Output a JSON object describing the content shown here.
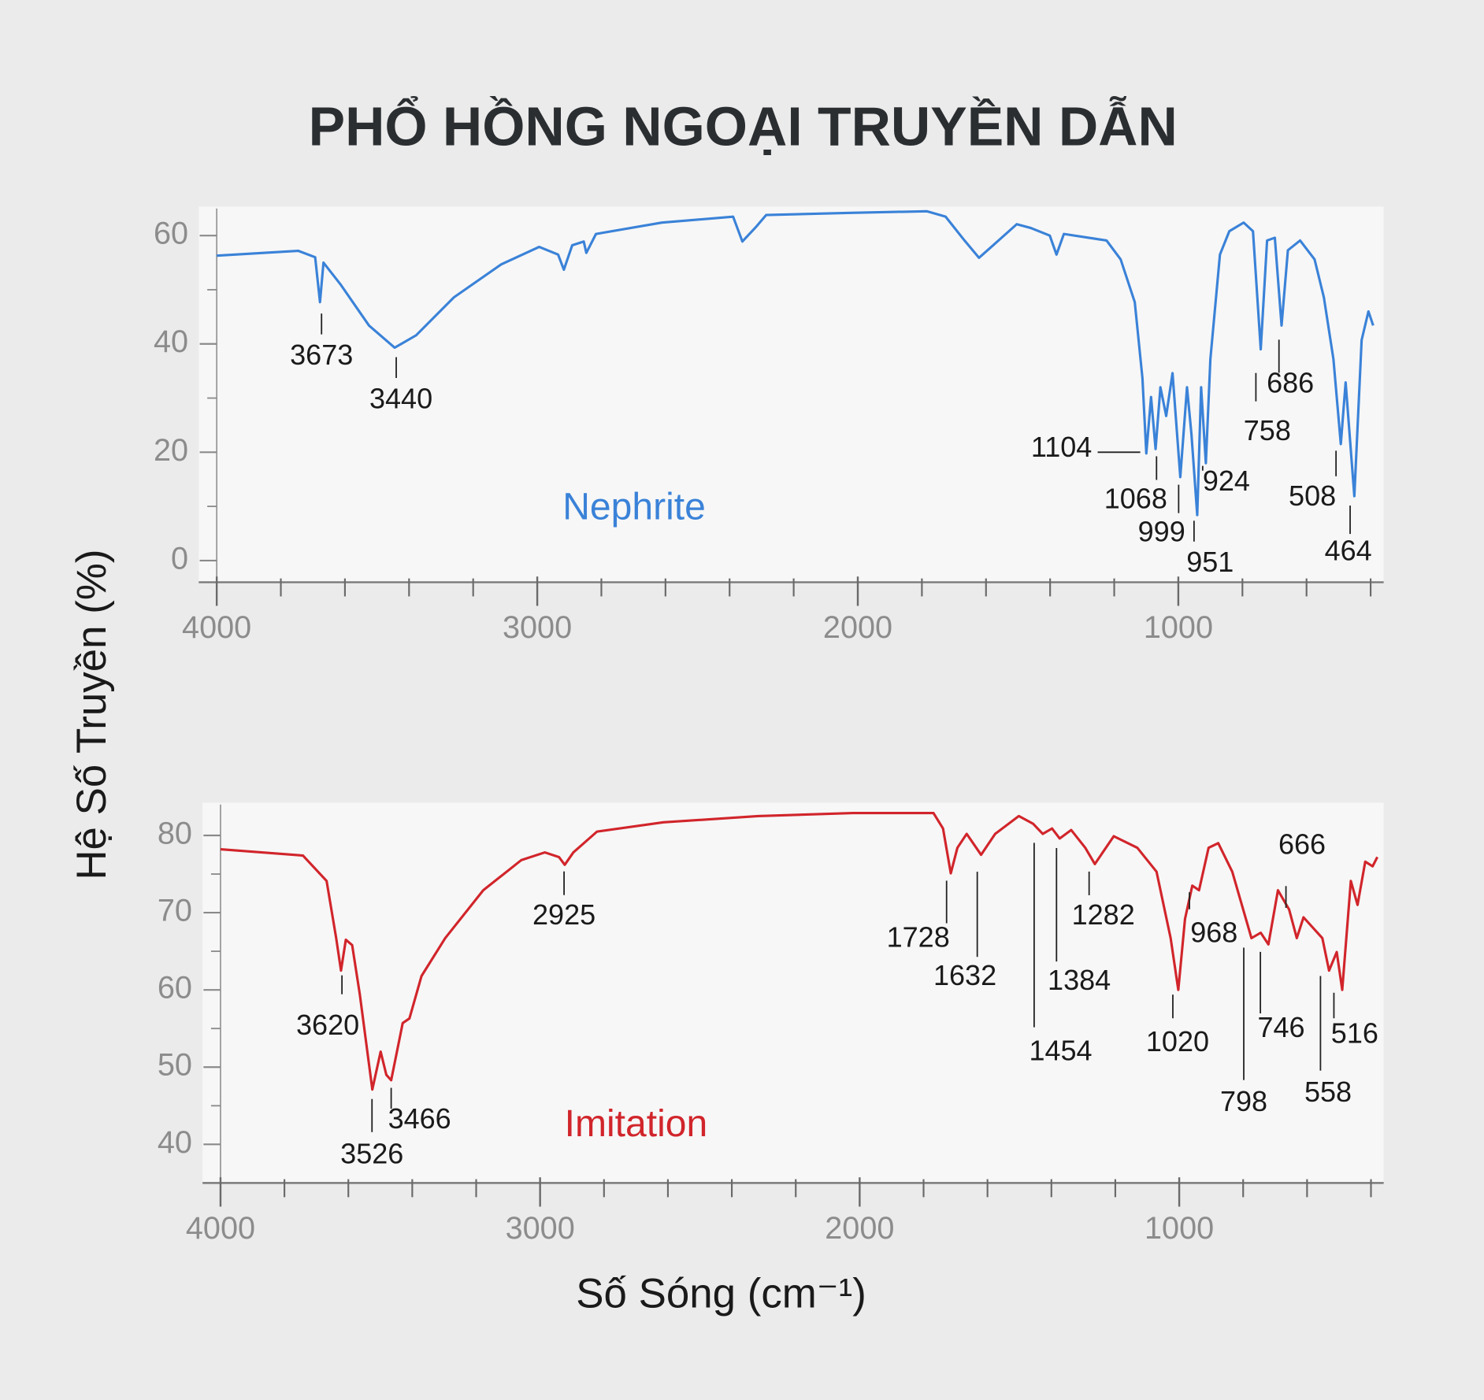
{
  "title": "PHỔ HỒNG NGOẠI TRUYỀN DẪN",
  "ylabel": "Hệ Số Truyền (%)",
  "xlabel": "Số Sóng (cm⁻¹)",
  "chart_data": [
    {
      "type": "line",
      "x": [
        4000,
        3746,
        3693,
        3678,
        3667,
        3614,
        3525,
        3445,
        3378,
        3260,
        3112,
        2994,
        2935,
        2917,
        2891,
        2855,
        2847,
        2817,
        2611,
        2389,
        2360,
        2316,
        2286,
        2021,
        1785,
        1726,
        1667,
        1622,
        1578,
        1504,
        1460,
        1401,
        1380,
        1357,
        1224,
        1180,
        1136,
        1112,
        1100,
        1085,
        1071,
        1056,
        1038,
        1018,
        994,
        973,
        959,
        941,
        929,
        914,
        900,
        870,
        841,
        796,
        767,
        743,
        723,
        699,
        678,
        658,
        620,
        575,
        546,
        516,
        493,
        478,
        451,
        428,
        407,
        392
      ],
      "series": [
        {
          "name": "Nephrite",
          "color": "#3a82d8",
          "values": [
            56.3,
            57.2,
            56,
            47.7,
            55,
            51,
            43.4,
            39.3,
            41.6,
            48.6,
            54.7,
            57.9,
            56.5,
            53.7,
            58.2,
            58.9,
            56.8,
            60.3,
            62.4,
            63.5,
            58.9,
            61.7,
            63.8,
            64.2,
            64.5,
            63.5,
            59.1,
            55.9,
            58.2,
            62.1,
            61.4,
            60,
            56.5,
            60.3,
            59.1,
            55.6,
            47.7,
            33.7,
            19.8,
            30.2,
            20.6,
            32,
            26.7,
            34.6,
            15.4,
            32,
            23.3,
            8.4,
            32,
            18,
            37.2,
            56.5,
            60.8,
            62.4,
            60.8,
            39,
            59.1,
            59.6,
            43.4,
            57.3,
            59.1,
            55.6,
            48.6,
            37.2,
            21.5,
            32.9,
            11.9,
            40.7,
            46,
            43.4
          ]
        }
      ],
      "xlim": [
        4000,
        380
      ],
      "xticks": [
        4000,
        3000,
        2000,
        1000
      ],
      "xminorticks": [
        3800,
        3600,
        3400,
        3200,
        2800,
        2600,
        2400,
        2200,
        1800,
        1600,
        1400,
        1200,
        800,
        600,
        400
      ],
      "ylim": [
        -4,
        65
      ],
      "yticks": [
        0,
        20,
        40,
        60
      ],
      "yminorticks": [
        10,
        30,
        50
      ],
      "annotations": [
        {
          "x": 3673,
          "y": 47.7
        },
        {
          "x": 3440,
          "y": 39.3
        },
        {
          "x": 1104,
          "y": 20
        },
        {
          "x": 1068,
          "y": 21
        },
        {
          "x": 999,
          "y": 15.4
        },
        {
          "x": 951,
          "y": 8.4
        },
        {
          "x": 924,
          "y": 18
        },
        {
          "x": 758,
          "y": 39
        },
        {
          "x": 686,
          "y": 43.4
        },
        {
          "x": 508,
          "y": 21.5
        },
        {
          "x": 464,
          "y": 11.9
        }
      ]
    },
    {
      "type": "line",
      "x": [
        4000,
        3742,
        3668,
        3638,
        3623,
        3608,
        3588,
        3564,
        3525,
        3499,
        3481,
        3466,
        3430,
        3409,
        3371,
        3297,
        3178,
        3059,
        2985,
        2941,
        2923,
        2896,
        2822,
        2614,
        2318,
        2021,
        1769,
        1739,
        1715,
        1694,
        1665,
        1620,
        1576,
        1502,
        1457,
        1427,
        1398,
        1374,
        1338,
        1294,
        1264,
        1205,
        1131,
        1071,
        1027,
        1003,
        982,
        959,
        938,
        908,
        878,
        834,
        774,
        745,
        721,
        691,
        656,
        632,
        611,
        552,
        531,
        507,
        490,
        463,
        442,
        418,
        395,
        380
      ],
      "series": [
        {
          "name": "Imitation",
          "color": "#d1252b",
          "values": [
            78.2,
            77.4,
            74.1,
            66.7,
            62.5,
            66.5,
            65.8,
            59.4,
            47.1,
            52,
            49,
            48.3,
            55.7,
            56.3,
            61.8,
            66.7,
            72.9,
            76.8,
            77.8,
            77.2,
            76.2,
            77.8,
            80.5,
            81.7,
            82.5,
            82.9,
            82.9,
            80.9,
            75.1,
            78.4,
            80.2,
            77.5,
            80.2,
            82.5,
            81.5,
            80.2,
            80.9,
            79.6,
            80.7,
            78.4,
            76.3,
            79.9,
            78.4,
            75.3,
            66.7,
            60,
            69.2,
            73.5,
            72.9,
            78.4,
            79,
            75.3,
            66.7,
            67.4,
            65.9,
            72.9,
            70.4,
            66.7,
            69.4,
            66.7,
            62.5,
            64.9,
            60,
            74.1,
            71,
            76.6,
            76,
            77.2
          ]
        }
      ],
      "xlim": [
        4000,
        378
      ],
      "xticks": [
        4000,
        3000,
        2000,
        1000
      ],
      "xminorticks": [
        3800,
        3600,
        3400,
        3200,
        2800,
        2600,
        2400,
        2200,
        1800,
        1600,
        1400,
        1200,
        800,
        600,
        400
      ],
      "ylim": [
        35,
        84
      ],
      "yticks": [
        40,
        50,
        60,
        70,
        80
      ],
      "yminorticks": [
        45,
        55,
        65,
        75
      ],
      "annotations": [
        {
          "x": 3620,
          "y": 62.5
        },
        {
          "x": 3526,
          "y": 47.1
        },
        {
          "x": 3466,
          "y": 48.3
        },
        {
          "x": 2925,
          "y": 76.2
        },
        {
          "x": 1728,
          "y": 75
        },
        {
          "x": 1632,
          "y": 77.5
        },
        {
          "x": 1454,
          "y": 81.5
        },
        {
          "x": 1384,
          "y": 79.6
        },
        {
          "x": 1282,
          "y": 76.3
        },
        {
          "x": 1020,
          "y": 60
        },
        {
          "x": 968,
          "y": 73.5
        },
        {
          "x": 798,
          "y": 66.7
        },
        {
          "x": 746,
          "y": 65.9
        },
        {
          "x": 666,
          "y": 69.4
        },
        {
          "x": 558,
          "y": 66.7
        },
        {
          "x": 516,
          "y": 60
        }
      ]
    }
  ]
}
